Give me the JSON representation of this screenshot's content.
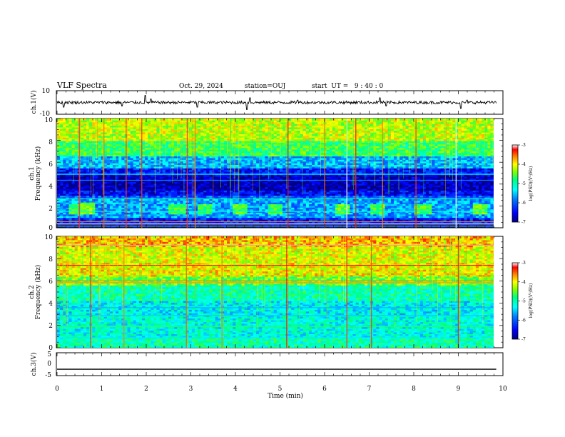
{
  "header": {
    "title": "VLF Spectra",
    "date": "Oct. 29, 2024",
    "station": "station=OUJ",
    "start": "start  UT =   9 : 40 : 0"
  },
  "colors": {
    "colormap": [
      "#000080",
      "#0000ff",
      "#0080ff",
      "#00ffff",
      "#00ff80",
      "#80ff00",
      "#ffff00",
      "#ff8000",
      "#ff0000",
      "#ffffff"
    ],
    "trace": "#000000"
  },
  "chart_data": [
    {
      "type": "line",
      "name": "ch1-waveform",
      "ylabel": "ch.1(V)",
      "ylim": [
        -10,
        10
      ],
      "yticks": [
        "10",
        "-10"
      ],
      "xlim": [
        0,
        10
      ],
      "series": [
        {
          "baseline": 0,
          "noise_amplitude": 1.2,
          "spikes": [
            [
              0.15,
              -4
            ],
            [
              1.45,
              -3
            ],
            [
              1.97,
              6
            ],
            [
              2.1,
              3
            ],
            [
              3.14,
              -4
            ],
            [
              4.25,
              -6
            ],
            [
              4.33,
              4
            ],
            [
              5.4,
              2
            ],
            [
              7.24,
              4
            ],
            [
              7.38,
              -3
            ],
            [
              9.06,
              -5
            ],
            [
              9.2,
              2
            ]
          ]
        }
      ]
    },
    {
      "type": "heatmap",
      "name": "ch1-spectrogram",
      "ylabel": "ch.1\nFrequency (kHz)",
      "xlim": [
        0,
        9.85
      ],
      "ylim": [
        0,
        10
      ],
      "yticks": [
        "0",
        "2",
        "4",
        "6",
        "8",
        "10"
      ],
      "zlim": [
        -7,
        -3
      ],
      "colorbar_ticks": [
        "-3",
        "-4",
        "-5",
        "-6",
        "-7"
      ],
      "colorbar_label": "log(PSD)(V²/Hz)",
      "bands": [
        {
          "f": [
            8.0,
            10.0
          ],
          "z": -4.2
        },
        {
          "f": [
            6.5,
            8.0
          ],
          "z": -4.7
        },
        {
          "f": [
            5.5,
            6.5
          ],
          "z": -5.6
        },
        {
          "f": [
            4.8,
            5.5
          ],
          "z": -6.4
        },
        {
          "f": [
            3.5,
            4.8
          ],
          "z": -6.8
        },
        {
          "f": [
            3.0,
            3.5
          ],
          "z": -6.5
        },
        {
          "f": [
            2.6,
            3.0
          ],
          "z": -6.0
        },
        {
          "f": [
            1.0,
            2.6
          ],
          "z": -5.7
        },
        {
          "f": [
            0.5,
            1.0
          ],
          "z": -6.3
        },
        {
          "f": [
            0.0,
            0.5
          ],
          "z": -6.9
        }
      ],
      "lines": [
        {
          "f": 4.35,
          "z": -5.8
        },
        {
          "f": 2.65,
          "z": -5.0
        },
        {
          "f": 1.5,
          "z": -5.2
        },
        {
          "f": 0.55,
          "z": -3.6
        },
        {
          "f": 0.35,
          "z": -3.0
        },
        {
          "f": 0.15,
          "z": -4.5
        },
        {
          "f": 4.9,
          "z": -5.3
        }
      ],
      "bursts": [
        {
          "t": 0.68,
          "f": [
            1.2,
            2.4
          ],
          "z": -4.4
        },
        {
          "t": 0.45,
          "f": [
            1.3,
            2.2
          ],
          "z": -4.7
        },
        {
          "t": 2.7,
          "f": [
            1.3,
            2.2
          ],
          "z": -4.6
        },
        {
          "t": 3.3,
          "f": [
            1.3,
            2.2
          ],
          "z": -4.6
        },
        {
          "t": 4.1,
          "f": [
            1.3,
            2.2
          ],
          "z": -4.6
        },
        {
          "t": 4.9,
          "f": [
            1.3,
            2.2
          ],
          "z": -4.7
        },
        {
          "t": 6.4,
          "f": [
            1.3,
            2.2
          ],
          "z": -4.5
        },
        {
          "t": 7.2,
          "f": [
            1.3,
            2.2
          ],
          "z": -4.6
        },
        {
          "t": 8.2,
          "f": [
            1.3,
            2.2
          ],
          "z": -4.6
        },
        {
          "t": 9.5,
          "f": [
            1.3,
            2.2
          ],
          "z": -4.5
        }
      ],
      "spikes": [
        {
          "t": 0.5,
          "z": -3.2
        },
        {
          "t": 1.05,
          "z": -3.5
        },
        {
          "t": 1.55,
          "z": -3.4
        },
        {
          "t": 1.9,
          "z": -3.4
        },
        {
          "t": 2.92,
          "z": -3.2
        },
        {
          "t": 3.1,
          "z": -3.6
        },
        {
          "t": 5.18,
          "z": -3.3
        },
        {
          "t": 6.0,
          "z": -3.5
        },
        {
          "t": 6.5,
          "z": -3.0
        },
        {
          "t": 6.7,
          "z": -3.3
        },
        {
          "t": 7.3,
          "z": -3.6
        },
        {
          "t": 8.05,
          "z": -3.4
        },
        {
          "t": 8.95,
          "z": -3.0
        }
      ]
    },
    {
      "type": "heatmap",
      "name": "ch2-spectrogram",
      "ylabel": "ch.2\nFrequency (kHz)",
      "xlim": [
        0,
        9.85
      ],
      "ylim": [
        0,
        10
      ],
      "yticks": [
        "0",
        "2",
        "4",
        "6",
        "8",
        "10"
      ],
      "zlim": [
        -7,
        -3
      ],
      "colorbar_ticks": [
        "-3",
        "-4",
        "-5",
        "-6",
        "-7"
      ],
      "colorbar_label": "log(PSD)(V²/Hz)",
      "bands": [
        {
          "f": [
            9.0,
            10.0
          ],
          "z": -3.8
        },
        {
          "f": [
            7.6,
            9.0
          ],
          "z": -4.1
        },
        {
          "f": [
            6.4,
            7.6
          ],
          "z": -4.0
        },
        {
          "f": [
            5.6,
            6.4
          ],
          "z": -4.5
        },
        {
          "f": [
            4.2,
            5.6
          ],
          "z": -5.0
        },
        {
          "f": [
            3.0,
            4.2
          ],
          "z": -5.3
        },
        {
          "f": [
            1.0,
            3.0
          ],
          "z": -5.2
        },
        {
          "f": [
            0.0,
            1.0
          ],
          "z": -5.0
        }
      ],
      "lines": [
        {
          "f": 9.2,
          "z": -3.1
        },
        {
          "f": 7.4,
          "z": -3.3
        },
        {
          "f": 6.0,
          "z": -3.6
        },
        {
          "f": 5.85,
          "z": -3.7
        },
        {
          "f": 1.9,
          "z": -4.7
        },
        {
          "f": 3.6,
          "z": -5.6
        },
        {
          "f": 2.9,
          "z": -5.5
        },
        {
          "f": 0.9,
          "z": -5.4
        }
      ],
      "bursts": [],
      "spikes": [
        {
          "t": 0.75,
          "z": -3.4
        },
        {
          "t": 1.5,
          "z": -3.6
        },
        {
          "t": 2.9,
          "z": -3.5
        },
        {
          "t": 3.7,
          "z": -3.6
        },
        {
          "t": 5.15,
          "z": -3.3
        },
        {
          "t": 6.5,
          "z": -3.2
        },
        {
          "t": 7.05,
          "z": -3.4
        },
        {
          "t": 9.0,
          "z": -3.3
        }
      ]
    },
    {
      "type": "line",
      "name": "ch3-waveform",
      "ylabel": "ch.3(V)",
      "ylim": [
        -5,
        5
      ],
      "yticks": [
        "5",
        "0",
        "-5"
      ],
      "xlim": [
        0,
        10
      ],
      "series": [
        {
          "constant": -2.2
        }
      ]
    }
  ],
  "xaxis": {
    "label": "Time (min)",
    "ticks": [
      "0",
      "1",
      "2",
      "3",
      "4",
      "5",
      "6",
      "7",
      "8",
      "9",
      "10"
    ]
  }
}
